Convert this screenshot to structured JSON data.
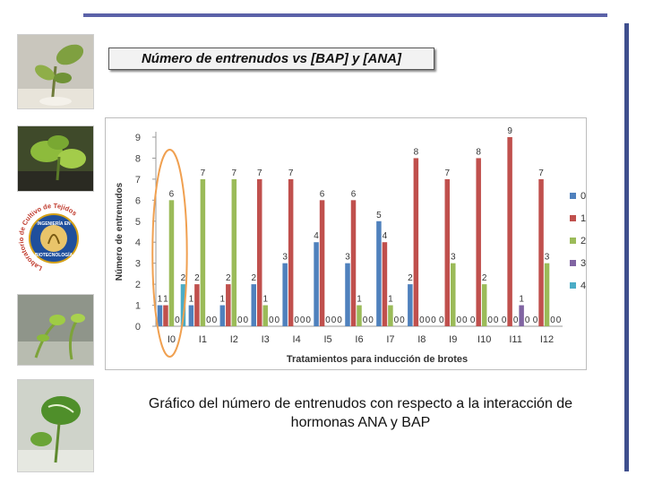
{
  "slide": {
    "title": "Número de entrenudos vs [BAP] y [ANA]",
    "caption_line1": "Gráfico del número de entrenudos con respecto a la interacción de",
    "caption_line2": "hormonas ANA y BAP"
  },
  "logo": {
    "ring_text": "Laboratorio de Cultivo de Tejidos",
    "center_text_top": "INGENIERÍA EN",
    "center_text_bottom": "BIOTECNOLOGÍA"
  },
  "chart_data": {
    "type": "bar",
    "title": "",
    "xlabel": "Tratamientos para inducción  de brotes",
    "ylabel": "Número de entrenudos",
    "ylim": [
      0,
      9
    ],
    "yticks": [
      "0",
      "1",
      "2",
      "3",
      "4",
      "5",
      "6",
      "7",
      "8",
      "9"
    ],
    "categories": [
      "I0",
      "I1",
      "I2",
      "I3",
      "I4",
      "I5",
      "I6",
      "I7",
      "I8",
      "I9",
      "I10",
      "I11",
      "I12"
    ],
    "series": [
      {
        "name": "0",
        "color": "#4f81bd",
        "values": [
          1,
          1,
          1,
          2,
          3,
          4,
          3,
          5,
          2,
          0,
          0,
          0,
          0
        ]
      },
      {
        "name": "1",
        "color": "#c0504d",
        "values": [
          1,
          2,
          2,
          7,
          7,
          6,
          6,
          4,
          8,
          7,
          8,
          9,
          7
        ]
      },
      {
        "name": "2",
        "color": "#9bbb59",
        "values": [
          6,
          7,
          7,
          1,
          0,
          0,
          1,
          1,
          0,
          3,
          2,
          0,
          3
        ]
      },
      {
        "name": "3",
        "color": "#8064a2",
        "values": [
          0,
          0,
          0,
          0,
          0,
          0,
          0,
          0,
          0,
          0,
          0,
          1,
          0
        ]
      },
      {
        "name": "4",
        "color": "#4bacc6",
        "values": [
          2,
          0,
          0,
          0,
          0,
          0,
          0,
          0,
          0,
          0,
          0,
          0,
          0
        ]
      }
    ],
    "highlight": "I0",
    "legend": "right"
  }
}
